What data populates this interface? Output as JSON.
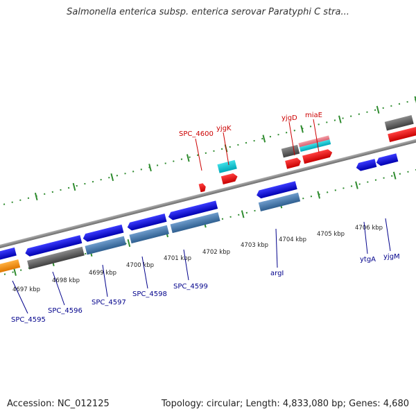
{
  "title": "Salmonella enterica subsp. enterica serovar Paratyphi C stra...",
  "footer": {
    "accession": "Accession: NC_012125",
    "summary": "Topology: circular; Length: 4,833,080 bp; Genes: 4,680"
  },
  "colors": {
    "backbone": "#8a8a8a",
    "tick": "#2e8b2e",
    "forward_label": "#cc0000",
    "reverse_label": "#00008b"
  },
  "ticks": [
    "4697 kbp",
    "4698 kbp",
    "4699 kbp",
    "4700 kbp",
    "4701 kbp",
    "4702 kbp",
    "4703 kbp",
    "4704 kbp",
    "4705 kbp",
    "4706 kbp"
  ],
  "forward_labels": [
    "SPC_4600",
    "yjgK",
    "yjgD",
    "miaE"
  ],
  "reverse_labels": [
    "SPC_4595",
    "SPC_4596",
    "SPC_4597",
    "SPC_4598",
    "SPC_4599",
    "argI",
    "ytgA",
    "yjgM"
  ]
}
